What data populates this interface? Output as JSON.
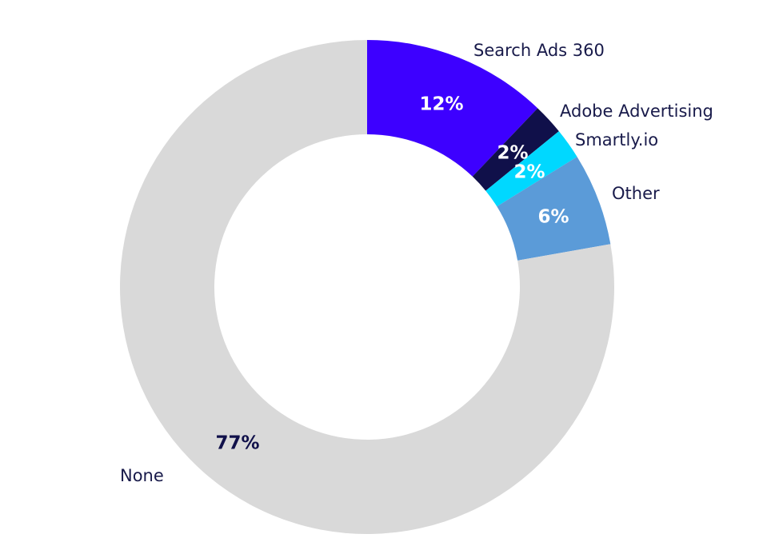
{
  "chart_data": {
    "type": "pie",
    "variant": "donut",
    "title": "",
    "legend": "none",
    "slices": [
      {
        "label": "Search Ads 360",
        "value": 12,
        "value_label": "12%",
        "color": "#3d00ff",
        "value_text_color": "#ffffff"
      },
      {
        "label": "Adobe Advertising",
        "value": 2,
        "value_label": "2%",
        "color": "#10104a",
        "value_text_color": "#ffffff"
      },
      {
        "label": "Smartly.io",
        "value": 2,
        "value_label": "2%",
        "color": "#00d8ff",
        "value_text_color": "#ffffff"
      },
      {
        "label": "Other",
        "value": 6,
        "value_label": "6%",
        "color": "#5b9bd8",
        "value_text_color": "#ffffff"
      },
      {
        "label": "None",
        "value": 77,
        "value_label": "77%",
        "color": "#d9d9d9",
        "value_text_color": "#10104a"
      }
    ]
  }
}
